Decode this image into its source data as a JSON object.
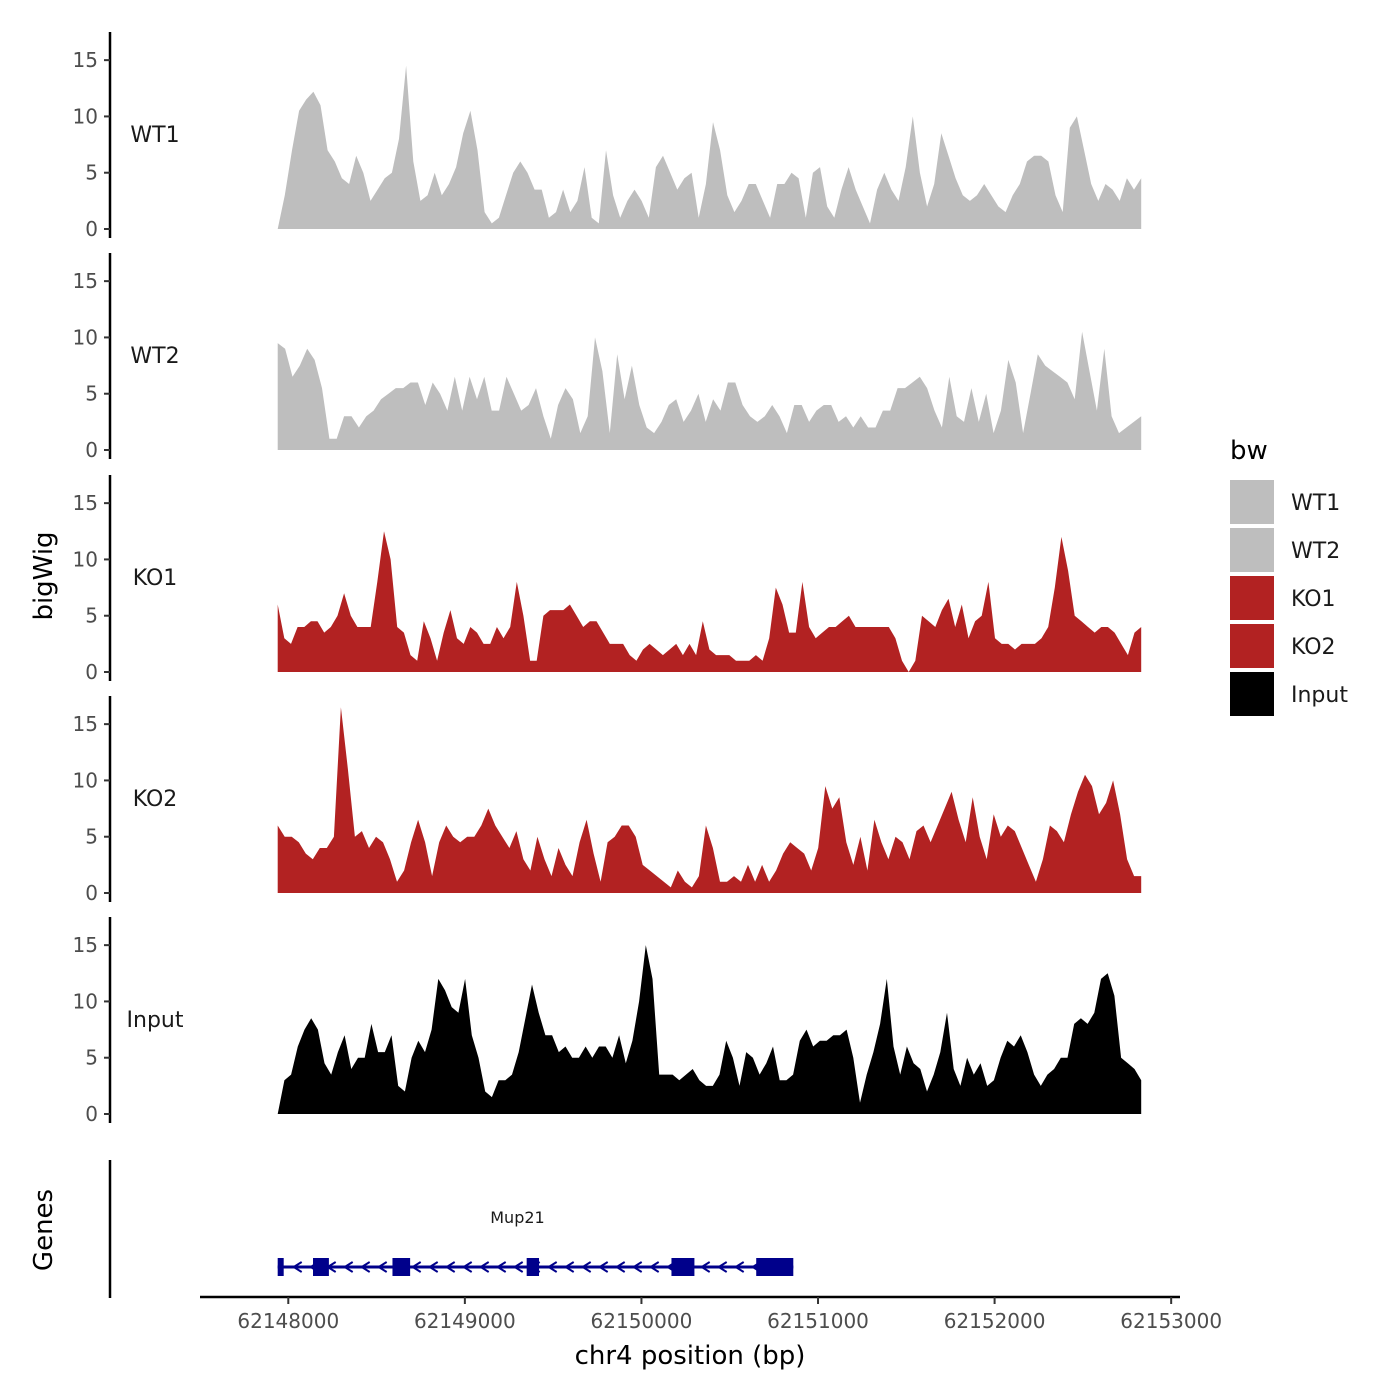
{
  "chart_data": {
    "type": "area",
    "xlabel": "chr4 position (bp)",
    "ylabel": "bigWig",
    "genes_label": "Genes",
    "x_range": [
      62147940,
      62152830
    ],
    "xlim": [
      62147500,
      62153050
    ],
    "x_ticks": [
      62148000,
      62149000,
      62150000,
      62151000,
      62152000,
      62153000
    ],
    "y_ticks": [
      0,
      5,
      10,
      15
    ],
    "ylim": [
      0,
      17.5
    ],
    "legend": {
      "title": "bw",
      "placement": "right",
      "entries": [
        {
          "label": "WT1",
          "color": "#bebebe"
        },
        {
          "label": "WT2",
          "color": "#bebebe"
        },
        {
          "label": "KO1",
          "color": "#b22222"
        },
        {
          "label": "KO2",
          "color": "#b22222"
        },
        {
          "label": "Input",
          "color": "#000000"
        }
      ]
    },
    "series": [
      {
        "name": "WT1",
        "color": "#bebebe",
        "values": [
          0,
          3,
          7,
          10.5,
          11.5,
          12.2,
          11,
          7,
          6,
          4.5,
          4,
          6.5,
          5,
          2.5,
          3.5,
          4.5,
          5,
          8,
          14.5,
          6,
          2.5,
          3,
          5,
          3,
          4,
          5.5,
          8.5,
          10.5,
          7,
          1.5,
          0.5,
          1,
          3,
          5,
          6,
          5,
          3.5,
          3.5,
          1,
          1.5,
          3.5,
          1.5,
          2.5,
          5.5,
          1,
          0.5,
          7,
          3,
          1,
          2.5,
          3.5,
          2.5,
          1,
          5.5,
          6.5,
          5,
          3.5,
          4.5,
          5,
          1,
          4,
          9.5,
          7,
          3,
          1.5,
          2.5,
          4,
          4,
          2.5,
          1,
          4,
          4,
          5,
          4.5,
          1,
          5,
          5.5,
          2,
          1,
          3.5,
          5.5,
          3.5,
          2,
          0.5,
          3.5,
          5,
          3.5,
          2.5,
          5.5,
          10,
          5,
          2,
          4,
          8.5,
          6.5,
          4.5,
          3,
          2.5,
          3,
          4,
          3,
          2,
          1.5,
          3,
          4,
          6,
          6.5,
          6.5,
          6,
          3,
          1.5,
          9,
          10,
          7,
          4,
          2.5,
          4,
          3.5,
          2.5,
          4.5,
          3.5,
          4.5
        ]
      },
      {
        "name": "WT2",
        "color": "#bebebe",
        "values": [
          9.5,
          9,
          6.5,
          7.5,
          9,
          8,
          5.5,
          1,
          1,
          3,
          3,
          2,
          3,
          3.5,
          4.5,
          5,
          5.5,
          5.5,
          6,
          6,
          4,
          6,
          5,
          3.5,
          6.5,
          3.5,
          6.5,
          4.5,
          6.5,
          3.5,
          3.5,
          6.5,
          5,
          3.5,
          4,
          5.5,
          3,
          1,
          4,
          5.5,
          4.5,
          1.5,
          3,
          10,
          7,
          1.5,
          8.5,
          4.5,
          7.5,
          4,
          2,
          1.5,
          2.5,
          4,
          4.5,
          2.5,
          3.5,
          5,
          2.5,
          4.5,
          3.5,
          6,
          6,
          4,
          3,
          2.5,
          3,
          4,
          3,
          1.5,
          4,
          4,
          2.5,
          3.5,
          4,
          4,
          2.5,
          3,
          2,
          3,
          2,
          2,
          3.5,
          3.5,
          5.5,
          5.5,
          6,
          6.5,
          5.5,
          3.5,
          2,
          6.5,
          3,
          2.5,
          5.5,
          2.5,
          5,
          1.5,
          3.5,
          8,
          6,
          1.5,
          5,
          8.5,
          7.5,
          7,
          6.5,
          6,
          4.5,
          10.5,
          7,
          3.5,
          9,
          3,
          1.5,
          2,
          2.5,
          3
        ]
      },
      {
        "name": "KO1",
        "color": "#b22222",
        "values": [
          6,
          3,
          2.5,
          4,
          4,
          4.5,
          4.5,
          3.5,
          4,
          5,
          7,
          5,
          4,
          4,
          4,
          8,
          12.5,
          10,
          4,
          3.5,
          1.5,
          1,
          4.5,
          3,
          1,
          3.5,
          5.5,
          3,
          2.5,
          4,
          3.5,
          2.5,
          2.5,
          4,
          3,
          4,
          8,
          5,
          1,
          1,
          5,
          5.5,
          5.5,
          5.5,
          6,
          5,
          4,
          4.5,
          4.5,
          3.5,
          2.5,
          2.5,
          2.5,
          1.5,
          1,
          2,
          2.5,
          2,
          1.5,
          2,
          2.5,
          1.5,
          2.5,
          1.5,
          4.5,
          2,
          1.5,
          1.5,
          1.5,
          1,
          1,
          1,
          1.5,
          1,
          3,
          7.5,
          6,
          3.5,
          3.5,
          8,
          4,
          3,
          3.5,
          4,
          4,
          4.5,
          5,
          4,
          4,
          4,
          4,
          4,
          4,
          3,
          1,
          0,
          1,
          5,
          4.5,
          4,
          5.5,
          6.5,
          4,
          6,
          3,
          4.5,
          5,
          8,
          3,
          2.5,
          2.5,
          2,
          2.5,
          2.5,
          2.5,
          3,
          4,
          7.5,
          12,
          9,
          5,
          4.5,
          4,
          3.5,
          4,
          4,
          3.5,
          2.5,
          1.5,
          3.5,
          4
        ]
      },
      {
        "name": "KO2",
        "color": "#b22222",
        "values": [
          6,
          5,
          5,
          4.5,
          3.5,
          3,
          4,
          4,
          5,
          16.5,
          11,
          5,
          5.5,
          4,
          5,
          4.5,
          3,
          1,
          2,
          4.5,
          6.5,
          4.5,
          1.5,
          4.5,
          6,
          5,
          4.5,
          5,
          5,
          6,
          7.5,
          6,
          5,
          4,
          5.5,
          3,
          2,
          5,
          3,
          1.5,
          4,
          2.5,
          1.5,
          4.5,
          6.5,
          3.5,
          1,
          4.5,
          5,
          6,
          6,
          5,
          2.5,
          2,
          1.5,
          1,
          0.5,
          2,
          1,
          0.5,
          1.5,
          6,
          4,
          1,
          1,
          1.5,
          1,
          2.5,
          1,
          2.5,
          1,
          2,
          3.5,
          4.5,
          4,
          3.5,
          2,
          4,
          9.5,
          7.5,
          8.5,
          4.5,
          2.5,
          5,
          2,
          6.5,
          4.5,
          3,
          5,
          4.5,
          3,
          5.5,
          6,
          4.5,
          6,
          7.5,
          9,
          6.5,
          4.5,
          8.5,
          5,
          3,
          7,
          5,
          6,
          5.5,
          4,
          2.5,
          1,
          3,
          6,
          5.5,
          4.5,
          7,
          9,
          10.5,
          9.5,
          7,
          8,
          10,
          7,
          3,
          1.5,
          1.5
        ]
      },
      {
        "name": "Input",
        "color": "#000000",
        "values": [
          0,
          3,
          3.5,
          6,
          7.5,
          8.5,
          7.5,
          4.5,
          3.5,
          5.5,
          7,
          4,
          5,
          5,
          8,
          5.5,
          5.5,
          7,
          2.5,
          2,
          5,
          6.5,
          5.5,
          7.5,
          12,
          11,
          9.5,
          9,
          12,
          7,
          5,
          2,
          1.5,
          3,
          3,
          3.5,
          5.5,
          8.5,
          11.5,
          9,
          7,
          7,
          5.5,
          6,
          5,
          5,
          6,
          5,
          6,
          6,
          5,
          7,
          4.5,
          6.5,
          10,
          15,
          12,
          3.5,
          3.5,
          3.5,
          3,
          3.5,
          4,
          3,
          2.5,
          2.5,
          3.5,
          6.5,
          5,
          2.5,
          5.5,
          5,
          3.5,
          4.5,
          6,
          3,
          3,
          3.5,
          6.5,
          7.5,
          6,
          6.5,
          6.5,
          7,
          7,
          7.5,
          5,
          1,
          3.5,
          5.5,
          8,
          12,
          6,
          3.5,
          6,
          4.5,
          4,
          2,
          3.5,
          5.5,
          9,
          4,
          2.5,
          5,
          3.5,
          4.5,
          2.5,
          3,
          5,
          6.5,
          6,
          7,
          5.5,
          3.5,
          2.5,
          3.5,
          4,
          5,
          5,
          8,
          8.5,
          8,
          9,
          12,
          12.5,
          10.5,
          5,
          4.5,
          4,
          3
        ]
      }
    ],
    "genes": [
      {
        "name": "Mup21",
        "start": 62147940,
        "end": 62150860,
        "strand": "-",
        "color": "#00008b",
        "exons": [
          [
            62147940,
            62147970
          ],
          [
            62148140,
            62148230
          ],
          [
            62148590,
            62148690
          ],
          [
            62149350,
            62149420
          ],
          [
            62150170,
            62150300
          ],
          [
            62150650,
            62150860
          ]
        ]
      }
    ]
  }
}
